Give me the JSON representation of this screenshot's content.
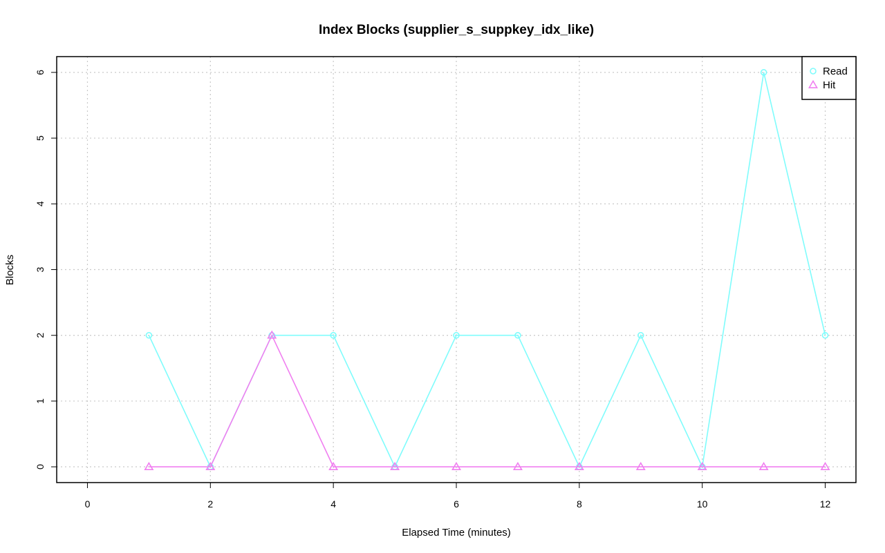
{
  "chart_data": {
    "type": "line",
    "title": "Index Blocks (supplier_s_suppkey_idx_like)",
    "xlabel": "Elapsed Time (minutes)",
    "ylabel": "Blocks",
    "xlim": [
      -0.5,
      12.5
    ],
    "ylim": [
      -0.24,
      6.24
    ],
    "x_ticks": [
      0,
      2,
      4,
      6,
      8,
      10,
      12
    ],
    "y_ticks": [
      0,
      1,
      2,
      3,
      4,
      5,
      6
    ],
    "grid": true,
    "legend_position": "top-right",
    "x": [
      1,
      2,
      3,
      4,
      5,
      6,
      7,
      8,
      9,
      10,
      11,
      12
    ],
    "series": [
      {
        "name": "Read",
        "marker": "circle",
        "color": "#7ffcfc",
        "values": [
          2,
          0,
          2,
          2,
          0,
          2,
          2,
          0,
          2,
          0,
          6,
          2
        ]
      },
      {
        "name": "Hit",
        "marker": "triangle",
        "color": "#f07ff0",
        "values": [
          0,
          0,
          2,
          0,
          0,
          0,
          0,
          0,
          0,
          0,
          0,
          0
        ]
      }
    ]
  }
}
